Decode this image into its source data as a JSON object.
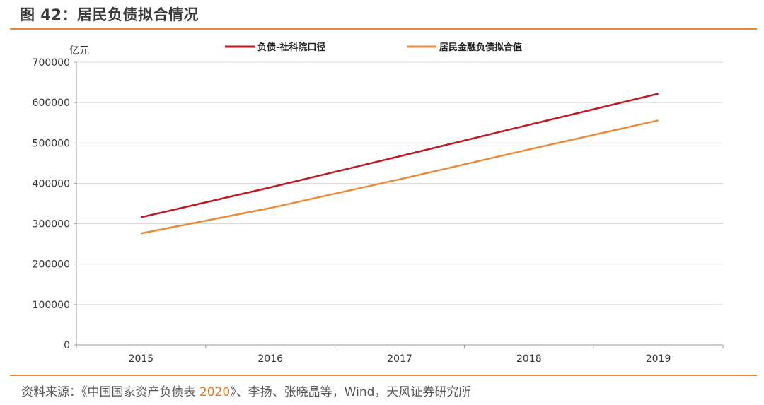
{
  "figure": {
    "title": "图 42：居民负债拟合情况",
    "source_prefix": "资料来源：《中国国家资产负债表 ",
    "source_year": "2020",
    "source_suffix": "》、李扬、张晓晶等，Wind，天风证券研究所"
  },
  "colors": {
    "accent_rule": "#e8882f",
    "series_1": "#c0191f",
    "series_2": "#ec8a3c",
    "grid": "#d9d9d9"
  },
  "chart_data": {
    "type": "line",
    "x": [
      "2015",
      "2016",
      "2017",
      "2018",
      "2019"
    ],
    "y_unit": "亿元",
    "ylim": [
      0,
      700000
    ],
    "yticks": [
      "0",
      "100000",
      "200000",
      "300000",
      "400000",
      "500000",
      "600000",
      "700000"
    ],
    "grid": true,
    "legend_position": "top",
    "series": [
      {
        "name": "负债-社科院口径",
        "values": [
          316000,
          390000,
          467000,
          545000,
          622000
        ]
      },
      {
        "name": "居民金融负债拟合值",
        "values": [
          276000,
          339000,
          410000,
          484000,
          556000
        ]
      }
    ]
  }
}
